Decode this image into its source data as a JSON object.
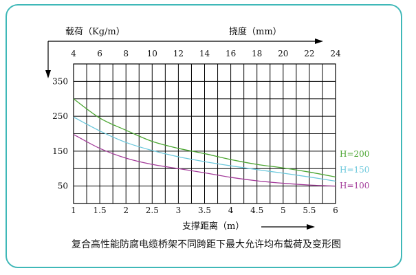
{
  "chart_data": {
    "type": "line",
    "top_axis_title": "载荷（Kg/m）",
    "top_axis_label": "挠度（mm）",
    "top_ticks": [
      4,
      6,
      8,
      10,
      12,
      14,
      16,
      18,
      20,
      22,
      24
    ],
    "bottom_axis_label": "支撑距离（m）",
    "x_ticks": [
      1,
      1.5,
      2,
      2.5,
      3,
      3.5,
      4,
      4.5,
      5,
      5.5,
      6
    ],
    "x_tick_labels": [
      "1",
      "1.5",
      "2",
      "2.5",
      "3",
      "3.5",
      "4",
      "4.5",
      "5",
      "5.5",
      "6"
    ],
    "xlim": [
      1,
      6
    ],
    "y_ticks": [
      50,
      150,
      250,
      350
    ],
    "ylim": [
      0,
      400
    ],
    "grid": true,
    "series": [
      {
        "name": "H=200",
        "color": "#4ca632",
        "x": [
          1,
          1.5,
          2,
          2.5,
          3,
          3.5,
          4,
          4.5,
          5,
          5.5,
          6
        ],
        "y": [
          300,
          245,
          210,
          178,
          158,
          143,
          126,
          112,
          102,
          90,
          76
        ]
      },
      {
        "name": "H=150",
        "color": "#6cc8dc",
        "x": [
          1,
          1.5,
          2,
          2.5,
          3,
          3.5,
          4,
          4.5,
          5,
          5.5,
          6
        ],
        "y": [
          248,
          208,
          175,
          152,
          134,
          120,
          108,
          97,
          87,
          76,
          64
        ]
      },
      {
        "name": "H=100",
        "color": "#a33c9a",
        "x": [
          1,
          1.5,
          2,
          2.5,
          3,
          3.5,
          4,
          4.5,
          5,
          5.5,
          6
        ],
        "y": [
          198,
          158,
          130,
          112,
          100,
          88,
          75,
          65,
          58,
          53,
          50
        ]
      }
    ],
    "legend_position": "right"
  },
  "caption": "复合高性能防腐电缆桥架不同跨距下最大允许均布载荷及变形图"
}
